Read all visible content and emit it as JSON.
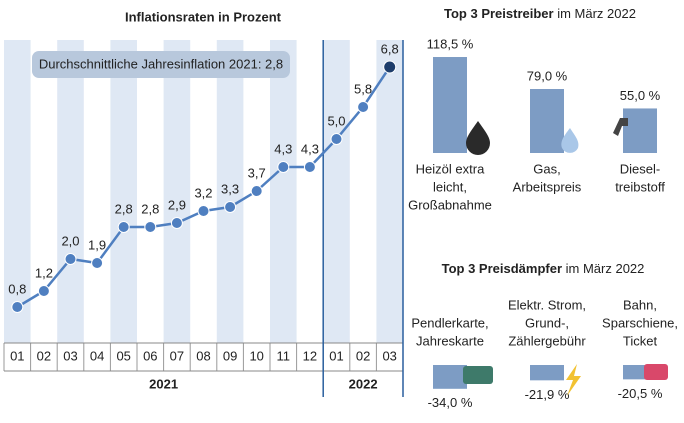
{
  "chart_data": [
    {
      "type": "line",
      "title": "Inflationsraten in Prozent",
      "categories": [
        "01",
        "02",
        "03",
        "04",
        "05",
        "06",
        "07",
        "08",
        "09",
        "10",
        "11",
        "12",
        "01",
        "02",
        "03"
      ],
      "groups": [
        {
          "label": "2021",
          "count": 12
        },
        {
          "label": "2022",
          "count": 3
        }
      ],
      "series": [
        {
          "name": "Inflationsrate",
          "color": "#4f7fc0",
          "values": [
            0.8,
            1.2,
            2.0,
            1.9,
            2.8,
            2.8,
            2.9,
            3.2,
            3.3,
            3.7,
            4.3,
            4.3,
            5.0,
            5.8,
            6.8
          ],
          "value_labels": [
            "0,8",
            "1,2",
            "2,0",
            "1,9",
            "2,8",
            "2,8",
            "2,9",
            "3,2",
            "3,3",
            "3,7",
            "4,3",
            "4,3",
            "5,0",
            "5,8",
            "6,8"
          ]
        }
      ],
      "annotation": "Durchschnittliche Jahresinflation 2021: 2,8"
    },
    {
      "type": "bar",
      "title": "Top 3 Preistreiber",
      "subtitle": "im März 2022",
      "categories": [
        [
          "Heizöl extra",
          "leicht,",
          "Großabnahme"
        ],
        [
          "Gas,",
          "Arbeitspreis"
        ],
        [
          "Diesel-",
          "treibstoff"
        ]
      ],
      "values": [
        118.5,
        79.0,
        55.0
      ],
      "value_labels": [
        "118,5 %",
        "79,0 %",
        "55,0 %"
      ],
      "color": "#7d9cc4"
    },
    {
      "type": "bar",
      "title": "Top 3 Preisdämpfer",
      "subtitle": "im März 2022",
      "categories": [
        [
          "Pendlerkarte,",
          "Jahreskarte"
        ],
        [
          "Elektr. Strom,",
          "Grund-,",
          "Zählergebühr"
        ],
        [
          "Bahn,",
          "Sparschiene,",
          "Ticket"
        ]
      ],
      "values": [
        -34.0,
        -21.9,
        -20.5
      ],
      "value_labels": [
        "-34,0 %",
        "-21,9 %",
        "-20,5 %"
      ],
      "color": "#7d9cc4"
    }
  ]
}
